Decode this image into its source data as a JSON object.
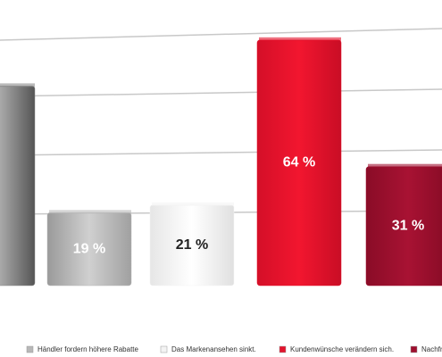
{
  "chart_data": {
    "type": "bar",
    "categories": [
      null,
      "Händler fordern höhere Rabatte",
      "Das Markenansehen sinkt.",
      "Kundenwünsche verändern sich.",
      "Nachfr"
    ],
    "values": [
      52,
      19,
      21,
      64,
      31
    ],
    "value_labels": [
      null,
      "19 %",
      "21 %",
      "64 %",
      "31 %"
    ],
    "colors": [
      "#8a8a8a",
      "#b8b8b8",
      "#f4f4f4",
      "#e3132c",
      "#9e0f2e"
    ]
  }
}
